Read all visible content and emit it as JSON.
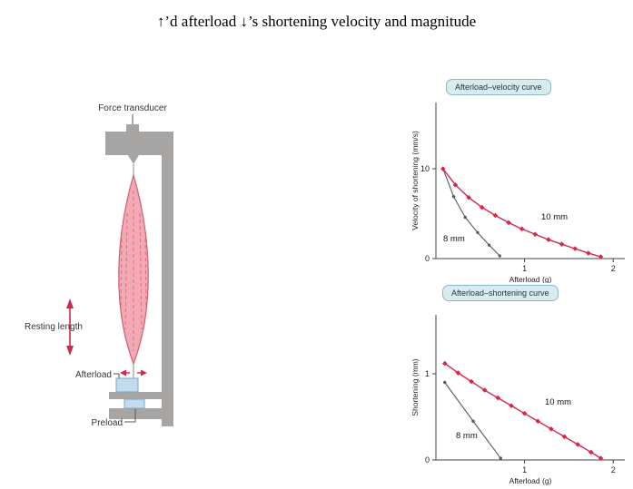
{
  "title": "↑’d afterload ↓’s shortening velocity and magnitude",
  "apparatus": {
    "force_transducer_label": "Force transducer",
    "resting_length_label": "Resting length",
    "afterload_label": "Afterload",
    "preload_label": "Preload"
  },
  "colors": {
    "red_accent": "#d2294b",
    "gray_curve": "#5a5a5a",
    "badge_fill": "#d8ecf0",
    "badge_border": "#85b9c5",
    "apparatus_gray": "#a7a5a3",
    "muscle_fill": "#f2a9b3",
    "muscle_stroke": "#ce5f72",
    "weight_fill": "#c2dcec",
    "weight_stroke": "#7ba6c0"
  },
  "chart_data": [
    {
      "type": "line",
      "title": "Afterload–velocity curve",
      "xlabel": "Afterload (g)",
      "ylabel": "Velocity of shortening (mm/s)",
      "xlim": [
        0,
        2.1
      ],
      "ylim": [
        0,
        10
      ],
      "xticks": [
        1,
        2
      ],
      "yticks": [
        0,
        10
      ],
      "legend_position": "inline",
      "grid": false,
      "series": [
        {
          "name": "8 mm",
          "color": "#5a5a5a",
          "marker": "dot",
          "points": [
            [
              0.08,
              10
            ],
            [
              0.2,
              6.9
            ],
            [
              0.33,
              4.6
            ],
            [
              0.47,
              2.9
            ],
            [
              0.6,
              1.5
            ],
            [
              0.72,
              0.3
            ]
          ]
        },
        {
          "name": "10 mm",
          "color": "#d2294b",
          "marker": "diamond",
          "points": [
            [
              0.08,
              10
            ],
            [
              0.22,
              8.2
            ],
            [
              0.37,
              6.8
            ],
            [
              0.52,
              5.7
            ],
            [
              0.67,
              4.8
            ],
            [
              0.82,
              4.0
            ],
            [
              0.97,
              3.3
            ],
            [
              1.12,
              2.7
            ],
            [
              1.27,
              2.1
            ],
            [
              1.42,
              1.6
            ],
            [
              1.57,
              1.1
            ],
            [
              1.72,
              0.6
            ],
            [
              1.86,
              0.2
            ]
          ]
        }
      ]
    },
    {
      "type": "line",
      "title": "Afterload–shortening curve",
      "xlabel": "Afterload (g)",
      "ylabel": "Shortening (mm)",
      "xlim": [
        0,
        2.1
      ],
      "ylim": [
        0,
        1.25
      ],
      "xticks": [
        1,
        2
      ],
      "yticks": [
        0,
        1
      ],
      "legend_position": "inline",
      "grid": false,
      "series": [
        {
          "name": "8 mm",
          "color": "#5a5a5a",
          "marker": "dot",
          "points": [
            [
              0.1,
              0.9
            ],
            [
              0.42,
              0.45
            ],
            [
              0.73,
              0.02
            ]
          ]
        },
        {
          "name": "10 mm",
          "color": "#d2294b",
          "marker": "diamond",
          "points": [
            [
              0.1,
              1.12
            ],
            [
              0.25,
              1.01
            ],
            [
              0.4,
              0.91
            ],
            [
              0.55,
              0.81
            ],
            [
              0.7,
              0.72
            ],
            [
              0.85,
              0.63
            ],
            [
              1.0,
              0.54
            ],
            [
              1.15,
              0.45
            ],
            [
              1.3,
              0.36
            ],
            [
              1.45,
              0.27
            ],
            [
              1.6,
              0.18
            ],
            [
              1.75,
              0.09
            ],
            [
              1.86,
              0.02
            ]
          ]
        }
      ]
    }
  ]
}
